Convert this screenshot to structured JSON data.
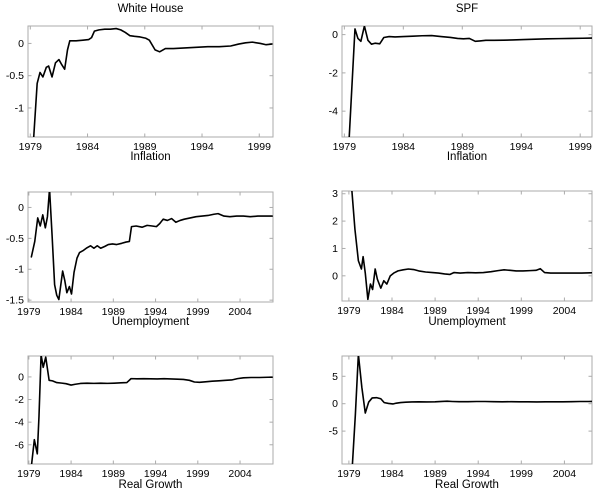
{
  "figure": {
    "background": "#ffffff"
  },
  "style": {
    "axis_color": "#ababab",
    "tick_label_color": "#000000",
    "line_color": "#000000",
    "line_width": 1.6
  },
  "chart_data": [
    {
      "type": "line",
      "panel": "white-house-inflation",
      "title": "White House",
      "xlabel": "Inflation",
      "legend": "none",
      "grid": false,
      "xlim": [
        1978.8,
        2000.2
      ],
      "ylim": [
        -1.45,
        0.27
      ],
      "xticks": [
        1979,
        1984,
        1989,
        1994,
        1999
      ],
      "yticks": [
        0,
        -0.5,
        -1
      ],
      "x": [
        1979.3,
        1979.6,
        1979.85,
        1980.1,
        1980.4,
        1980.6,
        1980.9,
        1981.2,
        1981.5,
        1981.75,
        1982.0,
        1982.25,
        1982.45,
        1983.0,
        1983.6,
        1984.1,
        1984.35,
        1984.6,
        1985.0,
        1985.5,
        1986.0,
        1986.5,
        1986.9,
        1987.3,
        1987.7,
        1988.1,
        1988.6,
        1989.1,
        1989.4,
        1989.9,
        1990.3,
        1990.8,
        1991.5,
        1992.5,
        1993.5,
        1994.5,
        1995.5,
        1996.5,
        1997.2,
        1997.8,
        1998.4,
        1999.1,
        1999.6,
        2000.1
      ],
      "y": [
        -1.45,
        -0.62,
        -0.45,
        -0.52,
        -0.37,
        -0.35,
        -0.52,
        -0.3,
        -0.25,
        -0.33,
        -0.4,
        -0.1,
        0.04,
        0.04,
        0.05,
        0.06,
        0.09,
        0.19,
        0.21,
        0.22,
        0.22,
        0.23,
        0.21,
        0.17,
        0.12,
        0.11,
        0.1,
        0.08,
        0.05,
        -0.1,
        -0.13,
        -0.08,
        -0.08,
        -0.07,
        -0.06,
        -0.05,
        -0.05,
        -0.04,
        -0.01,
        0.01,
        0.02,
        0.0,
        -0.02,
        -0.01
      ]
    },
    {
      "type": "line",
      "panel": "spf-inflation",
      "title": "SPF",
      "xlabel": "Inflation",
      "legend": "none",
      "grid": false,
      "xlim": [
        1978.8,
        2000.0
      ],
      "ylim": [
        -5.35,
        0.45
      ],
      "xticks": [
        1979,
        1984,
        1989,
        1994,
        1999
      ],
      "yticks": [
        0,
        -2,
        -4
      ],
      "x": [
        1979.4,
        1979.9,
        1980.15,
        1980.4,
        1980.7,
        1981.0,
        1981.3,
        1981.6,
        1982.0,
        1982.35,
        1982.8,
        1983.3,
        1984.0,
        1984.8,
        1985.6,
        1986.4,
        1987.2,
        1988.0,
        1988.6,
        1989.1,
        1989.6,
        1990.1,
        1990.5,
        1991.0,
        1991.7,
        1992.5,
        1993.3,
        1994.2,
        1995.2,
        1996.2,
        1997.2,
        1998.2,
        1999.2,
        2000.1
      ],
      "y": [
        -5.5,
        0.3,
        -0.2,
        -0.35,
        0.45,
        -0.3,
        -0.5,
        -0.45,
        -0.48,
        -0.15,
        -0.1,
        -0.12,
        -0.1,
        -0.08,
        -0.06,
        -0.05,
        -0.1,
        -0.15,
        -0.2,
        -0.22,
        -0.2,
        -0.35,
        -0.33,
        -0.3,
        -0.3,
        -0.29,
        -0.28,
        -0.26,
        -0.24,
        -0.22,
        -0.21,
        -0.2,
        -0.19,
        -0.18
      ]
    },
    {
      "type": "line",
      "panel": "white-house-unemployment",
      "title": "",
      "xlabel": "Unemployment",
      "legend": "none",
      "grid": false,
      "xlim": [
        1978.9,
        2007.9
      ],
      "ylim": [
        -1.53,
        0.25
      ],
      "xticks": [
        1979,
        1984,
        1989,
        1994,
        1999,
        2004
      ],
      "yticks": [
        0,
        -0.5,
        -1,
        -1.5
      ],
      "x": [
        1979.3,
        1979.7,
        1980.05,
        1980.35,
        1980.65,
        1980.95,
        1981.2,
        1981.45,
        1981.75,
        1982.05,
        1982.3,
        1982.55,
        1983.0,
        1983.25,
        1983.5,
        1983.8,
        1984.05,
        1984.35,
        1984.7,
        1985.0,
        1985.4,
        1985.8,
        1986.3,
        1986.7,
        1987.1,
        1987.5,
        1988.0,
        1988.4,
        1988.9,
        1989.4,
        1990.0,
        1990.5,
        1990.9,
        1991.15,
        1991.7,
        1992.4,
        1993.0,
        1993.6,
        1994.1,
        1994.5,
        1994.9,
        1995.4,
        1995.9,
        1996.4,
        1996.9,
        1997.4,
        1998.1,
        1998.8,
        1999.5,
        2000.2,
        2000.9,
        2001.4,
        2002.1,
        2002.8,
        2003.6,
        2004.4,
        2005.2,
        2006.1,
        2007.0,
        2007.8
      ],
      "y": [
        -0.8,
        -0.55,
        -0.17,
        -0.3,
        -0.12,
        -0.33,
        -0.15,
        0.3,
        -0.45,
        -1.25,
        -1.42,
        -1.49,
        -1.03,
        -1.18,
        -1.38,
        -1.28,
        -1.4,
        -1.05,
        -0.82,
        -0.73,
        -0.7,
        -0.66,
        -0.62,
        -0.66,
        -0.62,
        -0.66,
        -0.63,
        -0.6,
        -0.59,
        -0.6,
        -0.58,
        -0.56,
        -0.55,
        -0.31,
        -0.3,
        -0.32,
        -0.29,
        -0.3,
        -0.31,
        -0.26,
        -0.19,
        -0.21,
        -0.18,
        -0.24,
        -0.21,
        -0.19,
        -0.17,
        -0.15,
        -0.14,
        -0.13,
        -0.11,
        -0.1,
        -0.14,
        -0.15,
        -0.14,
        -0.14,
        -0.15,
        -0.14,
        -0.14,
        -0.14
      ]
    },
    {
      "type": "line",
      "panel": "spf-unemployment",
      "title": "",
      "xlabel": "Unemployment",
      "legend": "none",
      "grid": false,
      "xlim": [
        1978.2,
        2007.2
      ],
      "ylim": [
        -0.92,
        3.1
      ],
      "xticks": [
        1979,
        1984,
        1989,
        1994,
        1999,
        2004
      ],
      "yticks": [
        3,
        2,
        1,
        0
      ],
      "x": [
        1979.3,
        1979.7,
        1980.1,
        1980.45,
        1980.65,
        1980.9,
        1981.2,
        1981.5,
        1981.75,
        1982.05,
        1982.3,
        1982.7,
        1983.05,
        1983.4,
        1983.8,
        1984.2,
        1984.7,
        1985.3,
        1985.9,
        1986.5,
        1987.1,
        1987.9,
        1988.7,
        1989.4,
        1990.1,
        1990.7,
        1991.2,
        1991.9,
        1992.8,
        1993.7,
        1994.6,
        1995.5,
        1996.3,
        1997.0,
        1997.7,
        1998.4,
        1999.2,
        2000.0,
        2000.7,
        2001.2,
        2001.7,
        2002.4,
        2003.2,
        2004.1,
        2005.0,
        2006.0,
        2007.0,
        2007.8
      ],
      "y": [
        3.3,
        1.7,
        0.55,
        0.25,
        0.7,
        0.1,
        -0.86,
        -0.3,
        -0.5,
        0.25,
        -0.12,
        -0.45,
        -0.18,
        -0.3,
        0.0,
        0.1,
        0.18,
        0.22,
        0.25,
        0.23,
        0.18,
        0.14,
        0.12,
        0.1,
        0.07,
        0.05,
        0.12,
        0.1,
        0.12,
        0.11,
        0.12,
        0.15,
        0.19,
        0.22,
        0.2,
        0.18,
        0.18,
        0.19,
        0.2,
        0.26,
        0.12,
        0.1,
        0.1,
        0.1,
        0.1,
        0.1,
        0.11,
        0.12
      ]
    },
    {
      "type": "line",
      "panel": "white-house-real-growth",
      "title": "",
      "xlabel": "Real Growth",
      "legend": "none",
      "grid": false,
      "xlim": [
        1978.9,
        2007.9
      ],
      "ylim": [
        -7.7,
        1.85
      ],
      "xticks": [
        1979,
        1984,
        1989,
        1994,
        1999,
        2004
      ],
      "yticks": [
        0,
        -2,
        -4,
        -6
      ],
      "x": [
        1979.3,
        1979.65,
        1980.0,
        1980.2,
        1980.45,
        1980.7,
        1981.0,
        1981.4,
        1981.8,
        1982.3,
        1982.9,
        1983.4,
        1984.0,
        1984.5,
        1985.1,
        1985.9,
        1986.7,
        1987.5,
        1988.3,
        1989.1,
        1989.9,
        1990.6,
        1991.1,
        1991.8,
        1992.6,
        1993.4,
        1994.2,
        1995.0,
        1995.8,
        1996.6,
        1997.3,
        1998.0,
        1998.6,
        1999.2,
        1999.9,
        2000.7,
        2001.5,
        2002.3,
        2003.0,
        2003.7,
        2004.4,
        2005.3,
        2006.3,
        2007.3,
        2007.8
      ],
      "y": [
        -7.9,
        -5.55,
        -6.8,
        -3.5,
        1.95,
        0.85,
        1.75,
        -0.3,
        -0.35,
        -0.5,
        -0.55,
        -0.6,
        -0.72,
        -0.65,
        -0.58,
        -0.55,
        -0.57,
        -0.55,
        -0.57,
        -0.55,
        -0.52,
        -0.5,
        -0.15,
        -0.17,
        -0.16,
        -0.17,
        -0.18,
        -0.16,
        -0.18,
        -0.2,
        -0.22,
        -0.3,
        -0.45,
        -0.48,
        -0.43,
        -0.38,
        -0.34,
        -0.3,
        -0.27,
        -0.15,
        -0.08,
        -0.05,
        -0.05,
        -0.03,
        -0.02
      ]
    },
    {
      "type": "line",
      "panel": "spf-real-growth",
      "title": "",
      "xlabel": "Real Growth",
      "legend": "none",
      "grid": false,
      "xlim": [
        1978.2,
        2007.2
      ],
      "ylim": [
        -11.0,
        8.7
      ],
      "xticks": [
        1979,
        1984,
        1989,
        1994,
        1999,
        2004
      ],
      "yticks": [
        5,
        0,
        -5
      ],
      "x": [
        1979.4,
        1979.75,
        1980.1,
        1980.5,
        1980.9,
        1981.3,
        1981.7,
        1982.2,
        1982.7,
        1983.1,
        1983.6,
        1984.1,
        1984.5,
        1985.0,
        1985.6,
        1986.3,
        1987.1,
        1988.0,
        1989.0,
        1989.8,
        1990.4,
        1991.0,
        1991.8,
        1992.8,
        1993.8,
        1994.8,
        1995.8,
        1996.8,
        1997.8,
        1998.8,
        1999.8,
        2000.8,
        2001.8,
        2002.8,
        2003.8,
        2004.8,
        2005.8,
        2006.8,
        2007.8
      ],
      "y": [
        -11.3,
        -2.0,
        9.0,
        3.0,
        -1.7,
        0.3,
        1.05,
        1.1,
        0.9,
        0.2,
        0.05,
        -0.05,
        0.1,
        0.2,
        0.28,
        0.32,
        0.35,
        0.32,
        0.35,
        0.42,
        0.45,
        0.4,
        0.36,
        0.36,
        0.4,
        0.4,
        0.36,
        0.35,
        0.36,
        0.35,
        0.35,
        0.32,
        0.34,
        0.35,
        0.35,
        0.36,
        0.4,
        0.4,
        0.44
      ]
    }
  ]
}
